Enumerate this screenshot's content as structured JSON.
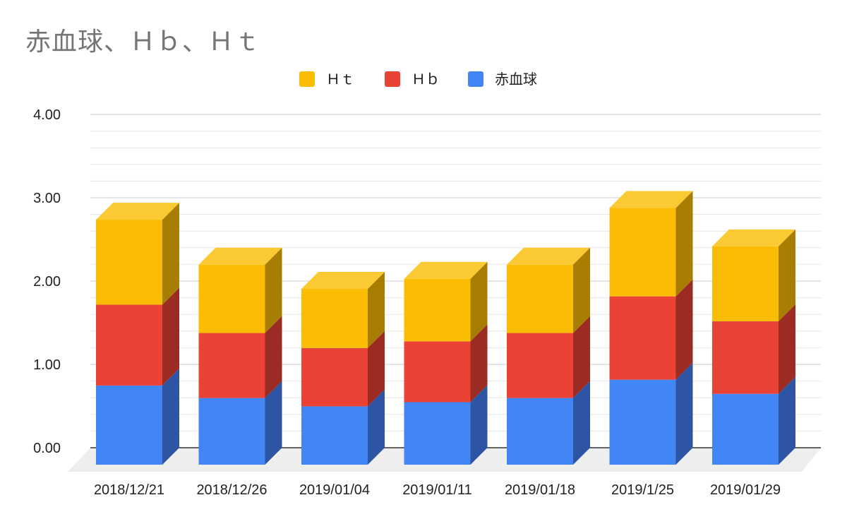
{
  "chart_data": {
    "type": "bar",
    "stacked": true,
    "three_d": true,
    "title": "赤血球、Ｈｂ、Ｈｔ",
    "categories": [
      "2018/12/21",
      "2018/12/26",
      "2019/01/04",
      "2019/01/11",
      "2019/01/18",
      "2019/1/25",
      "2019/01/29"
    ],
    "series": [
      {
        "name": "赤血球",
        "color": "#4285f4",
        "side_color": "#2d55a3",
        "top_color": "#6a9df7",
        "values": [
          0.95,
          0.8,
          0.7,
          0.75,
          0.8,
          1.02,
          0.85
        ]
      },
      {
        "name": "Ｈｂ",
        "color": "#ea4335",
        "side_color": "#9b2b23",
        "top_color": "#ef6a5e",
        "values": [
          0.97,
          0.78,
          0.7,
          0.73,
          0.78,
          1.0,
          0.87
        ]
      },
      {
        "name": "Ｈｔ",
        "color": "#fbbc04",
        "side_color": "#a87e02",
        "top_color": "#fbc933",
        "values": [
          1.02,
          0.82,
          0.71,
          0.75,
          0.82,
          1.06,
          0.9
        ]
      }
    ],
    "legend_order": [
      "Ｈｔ",
      "Ｈｂ",
      "赤血球"
    ],
    "legend_position": "top-center",
    "y_ticks": [
      "0.00",
      "1.00",
      "2.00",
      "3.00",
      "4.00"
    ],
    "ylim": [
      0,
      4
    ],
    "grid": true,
    "xlabel": "",
    "ylabel": ""
  }
}
